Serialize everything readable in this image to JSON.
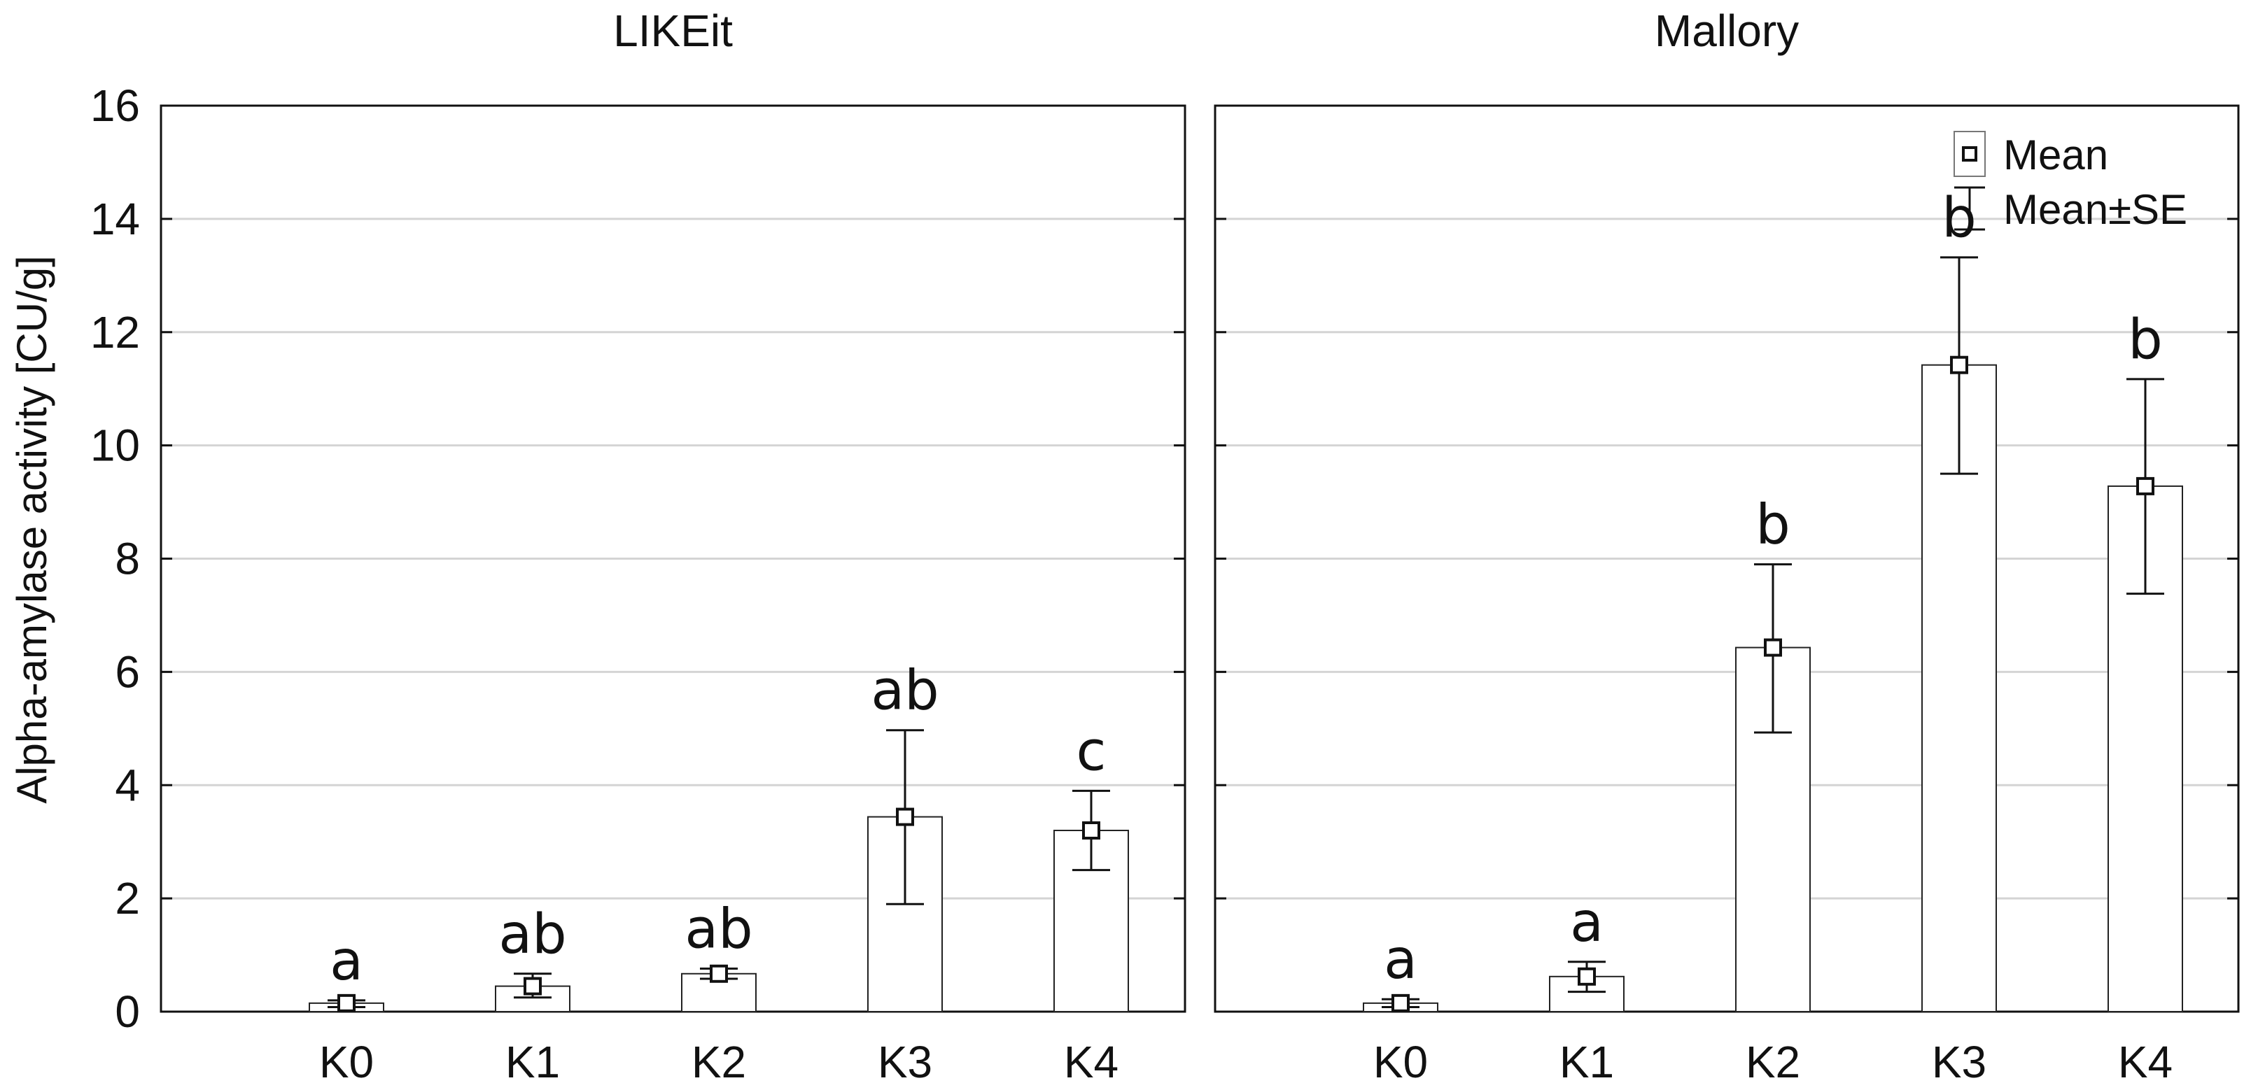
{
  "chart_data": {
    "type": "bar",
    "ylabel": "Alpha-amylase activity [CU/g]",
    "ylim": [
      0,
      16
    ],
    "yticks": [
      0,
      2,
      4,
      6,
      8,
      10,
      12,
      14,
      16
    ],
    "grid": true,
    "categories": [
      "K0",
      "K1",
      "K2",
      "K3",
      "K4"
    ],
    "legend": {
      "placement": "top-right",
      "entries": [
        {
          "label": "Mean",
          "icon": "square-marker"
        },
        {
          "label": "Mean±SE",
          "icon": "error-bar"
        }
      ]
    },
    "panels": [
      {
        "title": "LIKEit",
        "values": [
          0.15,
          0.45,
          0.67,
          3.44,
          3.2
        ],
        "se_low": [
          0.08,
          0.25,
          0.58,
          1.9,
          2.5
        ],
        "se_high": [
          0.2,
          0.67,
          0.76,
          4.97,
          3.9
        ],
        "letters": [
          "a",
          "ab",
          "ab",
          "ab",
          "c"
        ]
      },
      {
        "title": "Mallory",
        "values": [
          0.15,
          0.62,
          6.43,
          11.42,
          9.28
        ],
        "se_low": [
          0.08,
          0.35,
          4.93,
          9.5,
          7.38
        ],
        "se_high": [
          0.22,
          0.88,
          7.9,
          13.32,
          11.17
        ],
        "letters": [
          "a",
          "a",
          "b",
          "b",
          "b"
        ]
      }
    ]
  }
}
